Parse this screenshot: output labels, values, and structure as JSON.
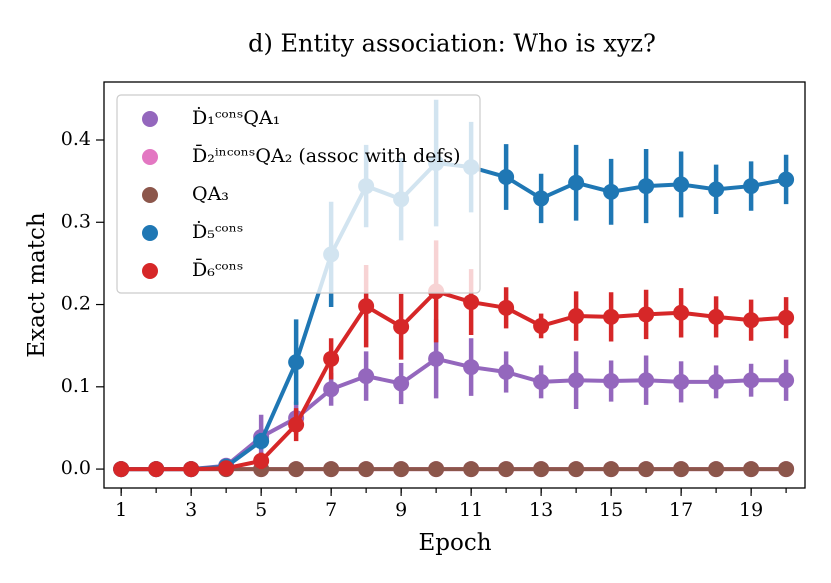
{
  "chart_data": {
    "type": "line",
    "title": "d) Entity association: Who is xyz?",
    "xlabel": "Epoch",
    "ylabel": "Exact match",
    "x": [
      1,
      2,
      3,
      4,
      5,
      6,
      7,
      8,
      9,
      10,
      11,
      12,
      13,
      14,
      15,
      16,
      17,
      18,
      19,
      20
    ],
    "xlim": [
      0.51,
      20.54
    ],
    "xticks": [
      1,
      3,
      5,
      7,
      9,
      11,
      13,
      15,
      17,
      19
    ],
    "ylim": [
      -0.023,
      0.4705
    ],
    "yticks": [
      {
        "value": 0,
        "label": "0.0"
      },
      {
        "value": 0.1,
        "label": "0.1"
      },
      {
        "value": 0.2,
        "label": "0.2"
      },
      {
        "value": 0.3,
        "label": "0.3"
      },
      {
        "value": 0.4,
        "label": "0.4"
      }
    ],
    "legend": "upper left",
    "series": [
      {
        "name": "Ḋ₁ᶜᵒⁿˢQA₁",
        "color": "#9467bd",
        "values": [
          0,
          0,
          0,
          0.004,
          0.039,
          0.062,
          0.097,
          0.113,
          0.104,
          0.134,
          0.124,
          0.118,
          0.106,
          0.108,
          0.107,
          0.108,
          0.106,
          0.106,
          0.108,
          0.108
        ],
        "errors": [
          0,
          0,
          0,
          0.003,
          0.027,
          0.02,
          0.02,
          0.03,
          0.025,
          0.048,
          0.035,
          0.025,
          0.02,
          0.035,
          0.025,
          0.03,
          0.025,
          0.02,
          0.02,
          0.025
        ]
      },
      {
        "name": "D̄₂ⁱⁿᶜᵒⁿˢQA₂ (assoc with defs)",
        "color": "#e377c2",
        "values": [
          0,
          0,
          0,
          0,
          0,
          0,
          0,
          0,
          0,
          0,
          0,
          0,
          0,
          0,
          0,
          0,
          0,
          0,
          0,
          0
        ]
      },
      {
        "name": "QA₃",
        "color": "#8c564b",
        "values": [
          0,
          0,
          0,
          0,
          0,
          0,
          0,
          0,
          0,
          0,
          0,
          0,
          0,
          0,
          0,
          0,
          0,
          0,
          0,
          0
        ]
      },
      {
        "name": "Ḋ₅ᶜᵒⁿˢ",
        "color": "#1f77b4",
        "values": [
          0,
          0,
          0,
          0.003,
          0.034,
          0.13,
          0.261,
          0.344,
          0.328,
          0.372,
          0.367,
          0.355,
          0.329,
          0.348,
          0.337,
          0.344,
          0.346,
          0.34,
          0.344,
          0.352
        ],
        "errors": [
          0,
          0,
          0,
          0.002,
          0.01,
          0.052,
          0.064,
          0.05,
          0.05,
          0.077,
          0.055,
          0.04,
          0.03,
          0.046,
          0.04,
          0.045,
          0.04,
          0.03,
          0.03,
          0.03
        ]
      },
      {
        "name": "D̄₆ᶜᵒⁿˢ",
        "color": "#d62728",
        "values": [
          0,
          0,
          0,
          0.001,
          0.01,
          0.054,
          0.134,
          0.198,
          0.173,
          0.216,
          0.203,
          0.196,
          0.174,
          0.186,
          0.185,
          0.188,
          0.19,
          0.185,
          0.181,
          0.184
        ],
        "errors": [
          0,
          0,
          0,
          0.002,
          0.01,
          0.02,
          0.025,
          0.05,
          0.04,
          0.062,
          0.04,
          0.025,
          0.015,
          0.03,
          0.03,
          0.03,
          0.03,
          0.025,
          0.025,
          0.025
        ]
      }
    ]
  }
}
